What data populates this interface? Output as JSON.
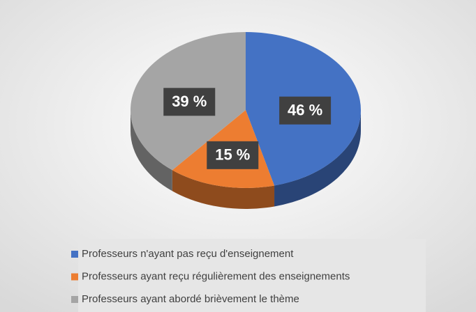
{
  "chart_data": {
    "type": "pie",
    "categories": [
      "Professeurs n'ayant pas reçu d'enseignement",
      "Professeurs ayant reçu régulièrement des enseignements",
      "Professeurs ayant abordé brièvement le thème"
    ],
    "values": [
      46,
      15,
      39
    ],
    "value_labels": [
      "46 %",
      "15 %",
      "39 %"
    ],
    "colors": [
      "#4472c4",
      "#ed7d31",
      "#a5a5a5"
    ],
    "legend": "bottom"
  }
}
